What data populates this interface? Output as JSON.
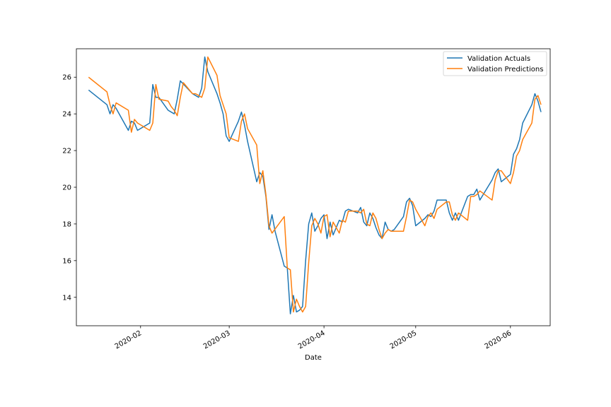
{
  "chart_data": {
    "type": "line",
    "title": "",
    "xlabel": "Date",
    "ylabel": "",
    "x_type": "date",
    "xlim": [
      "2020-01-11",
      "2020-06-14"
    ],
    "ylim": [
      12.45,
      27.55
    ],
    "grid": false,
    "legend_position": "top-right",
    "x_ticks": [
      {
        "date": "2020-02-01",
        "label": "2020-02"
      },
      {
        "date": "2020-03-01",
        "label": "2020-03"
      },
      {
        "date": "2020-04-01",
        "label": "2020-04"
      },
      {
        "date": "2020-05-01",
        "label": "2020-05"
      },
      {
        "date": "2020-06-01",
        "label": "2020-06"
      }
    ],
    "y_ticks": [
      14,
      16,
      18,
      20,
      22,
      24,
      26
    ],
    "series": [
      {
        "name": "Validation Actuals",
        "color": "#1f77b4",
        "points": [
          [
            "2020-01-15",
            25.3
          ],
          [
            "2020-01-21",
            24.5
          ],
          [
            "2020-01-22",
            24.0
          ],
          [
            "2020-01-23",
            24.5
          ],
          [
            "2020-01-24",
            24.3
          ],
          [
            "2020-01-28",
            23.1
          ],
          [
            "2020-01-29",
            23.6
          ],
          [
            "2020-01-30",
            23.5
          ],
          [
            "2020-01-31",
            23.1
          ],
          [
            "2020-02-04",
            23.5
          ],
          [
            "2020-02-05",
            25.6
          ],
          [
            "2020-02-06",
            24.9
          ],
          [
            "2020-02-07",
            24.9
          ],
          [
            "2020-02-10",
            24.2
          ],
          [
            "2020-02-11",
            24.1
          ],
          [
            "2020-02-12",
            24.0
          ],
          [
            "2020-02-13",
            24.8
          ],
          [
            "2020-02-14",
            25.8
          ],
          [
            "2020-02-18",
            25.1
          ],
          [
            "2020-02-19",
            25.0
          ],
          [
            "2020-02-20",
            24.9
          ],
          [
            "2020-02-21",
            25.4
          ],
          [
            "2020-02-22",
            27.1
          ],
          [
            "2020-02-23",
            26.3
          ],
          [
            "2020-02-26",
            25.1
          ],
          [
            "2020-02-27",
            24.6
          ],
          [
            "2020-02-28",
            24.0
          ],
          [
            "2020-02-29",
            22.8
          ],
          [
            "2020-03-01",
            22.5
          ],
          [
            "2020-03-04",
            23.6
          ],
          [
            "2020-03-05",
            24.1
          ],
          [
            "2020-03-06",
            23.4
          ],
          [
            "2020-03-07",
            22.5
          ],
          [
            "2020-03-10",
            20.3
          ],
          [
            "2020-03-11",
            20.8
          ],
          [
            "2020-03-12",
            20.6
          ],
          [
            "2020-03-13",
            19.5
          ],
          [
            "2020-03-14",
            17.7
          ],
          [
            "2020-03-15",
            18.5
          ],
          [
            "2020-03-16",
            17.6
          ],
          [
            "2020-03-19",
            15.7
          ],
          [
            "2020-03-20",
            15.6
          ],
          [
            "2020-03-21",
            13.1
          ],
          [
            "2020-03-22",
            14.1
          ],
          [
            "2020-03-23",
            13.2
          ],
          [
            "2020-03-24",
            13.3
          ],
          [
            "2020-03-25",
            13.5
          ],
          [
            "2020-03-26",
            16.0
          ],
          [
            "2020-03-27",
            18.0
          ],
          [
            "2020-03-28",
            18.6
          ],
          [
            "2020-03-29",
            17.6
          ],
          [
            "2020-03-30",
            17.9
          ],
          [
            "2020-03-31",
            18.3
          ],
          [
            "2020-04-01",
            18.5
          ],
          [
            "2020-04-02",
            17.2
          ],
          [
            "2020-04-03",
            18.1
          ],
          [
            "2020-04-04",
            17.4
          ],
          [
            "2020-04-06",
            18.2
          ],
          [
            "2020-04-07",
            18.1
          ],
          [
            "2020-04-08",
            18.7
          ],
          [
            "2020-04-09",
            18.8
          ],
          [
            "2020-04-12",
            18.6
          ],
          [
            "2020-04-13",
            18.9
          ],
          [
            "2020-04-14",
            18.1
          ],
          [
            "2020-04-15",
            17.9
          ],
          [
            "2020-04-16",
            18.6
          ],
          [
            "2020-04-17",
            18.3
          ],
          [
            "2020-04-18",
            17.8
          ],
          [
            "2020-04-19",
            17.4
          ],
          [
            "2020-04-20",
            17.2
          ],
          [
            "2020-04-21",
            18.1
          ],
          [
            "2020-04-22",
            17.7
          ],
          [
            "2020-04-23",
            17.6
          ],
          [
            "2020-04-24",
            17.7
          ],
          [
            "2020-04-27",
            18.4
          ],
          [
            "2020-04-28",
            19.2
          ],
          [
            "2020-04-29",
            19.4
          ],
          [
            "2020-04-30",
            19.0
          ],
          [
            "2020-05-01",
            17.9
          ],
          [
            "2020-05-04",
            18.3
          ],
          [
            "2020-05-05",
            18.5
          ],
          [
            "2020-05-06",
            18.4
          ],
          [
            "2020-05-07",
            18.7
          ],
          [
            "2020-05-08",
            19.3
          ],
          [
            "2020-05-11",
            19.3
          ],
          [
            "2020-05-12",
            18.6
          ],
          [
            "2020-05-13",
            18.2
          ],
          [
            "2020-05-14",
            18.6
          ],
          [
            "2020-05-15",
            18.2
          ],
          [
            "2020-05-18",
            19.5
          ],
          [
            "2020-05-19",
            19.6
          ],
          [
            "2020-05-20",
            19.6
          ],
          [
            "2020-05-21",
            19.9
          ],
          [
            "2020-05-22",
            19.3
          ],
          [
            "2020-05-26",
            20.4
          ],
          [
            "2020-05-27",
            20.8
          ],
          [
            "2020-05-28",
            21.0
          ],
          [
            "2020-05-29",
            20.3
          ],
          [
            "2020-06-01",
            20.7
          ],
          [
            "2020-06-02",
            21.8
          ],
          [
            "2020-06-03",
            22.1
          ],
          [
            "2020-06-04",
            22.6
          ],
          [
            "2020-06-05",
            23.5
          ],
          [
            "2020-06-08",
            24.5
          ],
          [
            "2020-06-09",
            25.1
          ],
          [
            "2020-06-10",
            24.7
          ],
          [
            "2020-06-11",
            24.1
          ]
        ]
      },
      {
        "name": "Validation Predictions",
        "color": "#ff7f0e",
        "points": [
          [
            "2020-01-15",
            26.0
          ],
          [
            "2020-01-21",
            25.2
          ],
          [
            "2020-01-22",
            24.5
          ],
          [
            "2020-01-23",
            24.0
          ],
          [
            "2020-01-24",
            24.6
          ],
          [
            "2020-01-28",
            24.2
          ],
          [
            "2020-01-29",
            23.0
          ],
          [
            "2020-01-30",
            23.7
          ],
          [
            "2020-01-31",
            23.5
          ],
          [
            "2020-02-04",
            23.1
          ],
          [
            "2020-02-05",
            23.5
          ],
          [
            "2020-02-06",
            25.6
          ],
          [
            "2020-02-07",
            24.8
          ],
          [
            "2020-02-10",
            24.7
          ],
          [
            "2020-02-11",
            24.4
          ],
          [
            "2020-02-12",
            24.2
          ],
          [
            "2020-02-13",
            23.9
          ],
          [
            "2020-02-14",
            24.9
          ],
          [
            "2020-02-15",
            25.7
          ],
          [
            "2020-02-18",
            25.1
          ],
          [
            "2020-02-19",
            25.1
          ],
          [
            "2020-02-20",
            25.0
          ],
          [
            "2020-02-21",
            24.9
          ],
          [
            "2020-02-22",
            25.4
          ],
          [
            "2020-02-23",
            27.1
          ],
          [
            "2020-02-26",
            26.1
          ],
          [
            "2020-02-27",
            25.0
          ],
          [
            "2020-02-28",
            24.5
          ],
          [
            "2020-02-29",
            24.0
          ],
          [
            "2020-03-01",
            22.7
          ],
          [
            "2020-03-04",
            22.5
          ],
          [
            "2020-03-05",
            23.6
          ],
          [
            "2020-03-06",
            24.0
          ],
          [
            "2020-03-07",
            23.2
          ],
          [
            "2020-03-10",
            22.3
          ],
          [
            "2020-03-11",
            20.2
          ],
          [
            "2020-03-12",
            20.9
          ],
          [
            "2020-03-13",
            19.6
          ],
          [
            "2020-03-14",
            17.9
          ],
          [
            "2020-03-15",
            17.5
          ],
          [
            "2020-03-19",
            18.4
          ],
          [
            "2020-03-20",
            15.6
          ],
          [
            "2020-03-21",
            15.5
          ],
          [
            "2020-03-22",
            13.2
          ],
          [
            "2020-03-23",
            13.9
          ],
          [
            "2020-03-24",
            13.5
          ],
          [
            "2020-03-25",
            13.2
          ],
          [
            "2020-03-26",
            13.5
          ],
          [
            "2020-03-27",
            15.9
          ],
          [
            "2020-03-28",
            17.9
          ],
          [
            "2020-03-29",
            18.3
          ],
          [
            "2020-03-30",
            18.0
          ],
          [
            "2020-03-31",
            17.5
          ],
          [
            "2020-04-01",
            18.4
          ],
          [
            "2020-04-02",
            18.5
          ],
          [
            "2020-04-03",
            17.3
          ],
          [
            "2020-04-04",
            18.1
          ],
          [
            "2020-04-06",
            17.5
          ],
          [
            "2020-04-07",
            18.2
          ],
          [
            "2020-04-08",
            18.1
          ],
          [
            "2020-04-09",
            18.7
          ],
          [
            "2020-04-12",
            18.7
          ],
          [
            "2020-04-13",
            18.6
          ],
          [
            "2020-04-14",
            18.8
          ],
          [
            "2020-04-15",
            18.0
          ],
          [
            "2020-04-16",
            17.9
          ],
          [
            "2020-04-17",
            18.6
          ],
          [
            "2020-04-18",
            18.3
          ],
          [
            "2020-04-19",
            17.7
          ],
          [
            "2020-04-20",
            17.2
          ],
          [
            "2020-04-21",
            17.5
          ],
          [
            "2020-04-22",
            17.7
          ],
          [
            "2020-04-23",
            17.6
          ],
          [
            "2020-04-27",
            17.6
          ],
          [
            "2020-04-28",
            18.4
          ],
          [
            "2020-04-29",
            19.3
          ],
          [
            "2020-04-30",
            19.2
          ],
          [
            "2020-05-01",
            18.8
          ],
          [
            "2020-05-04",
            17.9
          ],
          [
            "2020-05-05",
            18.4
          ],
          [
            "2020-05-06",
            18.6
          ],
          [
            "2020-05-07",
            18.3
          ],
          [
            "2020-05-08",
            18.8
          ],
          [
            "2020-05-11",
            19.2
          ],
          [
            "2020-05-12",
            19.2
          ],
          [
            "2020-05-13",
            18.5
          ],
          [
            "2020-05-14",
            18.2
          ],
          [
            "2020-05-15",
            18.6
          ],
          [
            "2020-05-18",
            18.2
          ],
          [
            "2020-05-19",
            19.5
          ],
          [
            "2020-05-20",
            19.5
          ],
          [
            "2020-05-21",
            19.6
          ],
          [
            "2020-05-22",
            19.8
          ],
          [
            "2020-05-26",
            19.3
          ],
          [
            "2020-05-27",
            20.4
          ],
          [
            "2020-05-28",
            20.9
          ],
          [
            "2020-05-29",
            20.9
          ],
          [
            "2020-06-01",
            20.2
          ],
          [
            "2020-06-02",
            20.8
          ],
          [
            "2020-06-03",
            21.7
          ],
          [
            "2020-06-04",
            22.0
          ],
          [
            "2020-06-05",
            22.6
          ],
          [
            "2020-06-08",
            23.5
          ],
          [
            "2020-06-09",
            24.8
          ],
          [
            "2020-06-10",
            25.0
          ],
          [
            "2020-06-11",
            24.5
          ]
        ]
      }
    ]
  }
}
